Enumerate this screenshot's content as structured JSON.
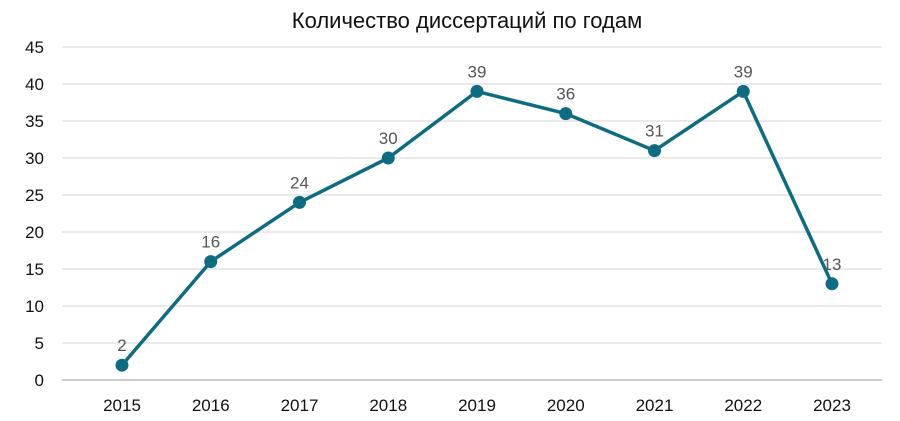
{
  "chart_data": {
    "type": "line",
    "title": "Количество диссертаций по годам",
    "categories": [
      "2015",
      "2016",
      "2017",
      "2018",
      "2019",
      "2020",
      "2021",
      "2022",
      "2023"
    ],
    "series": [
      {
        "values": [
          2,
          16,
          24,
          30,
          39,
          36,
          31,
          39,
          13
        ]
      }
    ],
    "data_labels": [
      "2",
      "16",
      "24",
      "30",
      "39",
      "36",
      "31",
      "39",
      "13"
    ],
    "ylim": [
      0,
      45
    ],
    "yticks": [
      0,
      5,
      10,
      15,
      20,
      25,
      30,
      35,
      40,
      45
    ],
    "ytick_labels": [
      "0",
      "5",
      "10",
      "15",
      "20",
      "25",
      "30",
      "35",
      "40",
      "45"
    ],
    "grid": true,
    "legend": "none",
    "colors": {
      "line": "#0f6c80",
      "marker": "#0f6c80",
      "data_label": "#555555",
      "grid": "#d6d6d6"
    }
  }
}
